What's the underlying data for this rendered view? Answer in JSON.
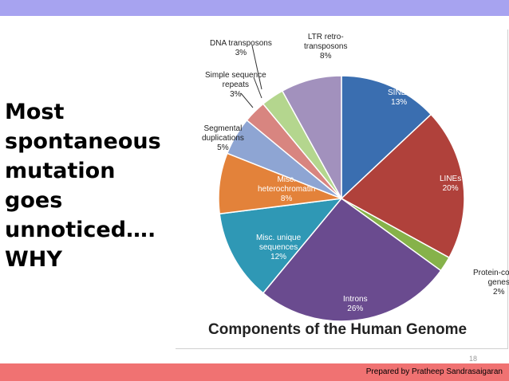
{
  "slide": {
    "headline_lines": [
      "Most",
      "spontaneous",
      "mutation",
      "goes",
      "unnoticed….",
      "WHY"
    ],
    "footer_credit": "Prepared by Pratheep Sandrasaigaran",
    "slide_number": "18",
    "colors": {
      "top_band": "#a7a3f0",
      "bottom_band": "#f07272"
    }
  },
  "chart_data": {
    "type": "pie",
    "title": "Components of the Human Genome",
    "legend": "none",
    "slices": [
      {
        "label_lines": [
          "SINEs"
        ],
        "value": 13,
        "display": "13%",
        "color": "#3a6eb0",
        "light": true
      },
      {
        "label_lines": [
          "LINEs"
        ],
        "value": 20,
        "display": "20%",
        "color": "#b0413b",
        "light": true
      },
      {
        "label_lines": [
          "Protein-coding",
          "genes"
        ],
        "value": 2,
        "display": "2%",
        "color": "#86b24a",
        "light": false
      },
      {
        "label_lines": [
          "Introns"
        ],
        "value": 26,
        "display": "26%",
        "color": "#6a4b8f",
        "light": true
      },
      {
        "label_lines": [
          "Misc. unique",
          "sequences"
        ],
        "value": 12,
        "display": "12%",
        "color": "#2f98b5",
        "light": true
      },
      {
        "label_lines": [
          "Misc.",
          "heterochromatin"
        ],
        "value": 8,
        "display": "8%",
        "color": "#e3823a",
        "light": true
      },
      {
        "label_lines": [
          "Segmental",
          "duplications"
        ],
        "value": 5,
        "display": "5%",
        "color": "#8ea5d3",
        "light": false
      },
      {
        "label_lines": [
          "Simple sequence",
          "repeats"
        ],
        "value": 3,
        "display": "3%",
        "color": "#d88580",
        "light": false
      },
      {
        "label_lines": [
          "DNA transposons"
        ],
        "value": 3,
        "display": "3%",
        "color": "#b4d68e",
        "light": false
      },
      {
        "label_lines": [
          "LTR retro-",
          "transposons"
        ],
        "value": 8,
        "display": "8%",
        "color": "#a291bd",
        "light": false
      }
    ]
  }
}
